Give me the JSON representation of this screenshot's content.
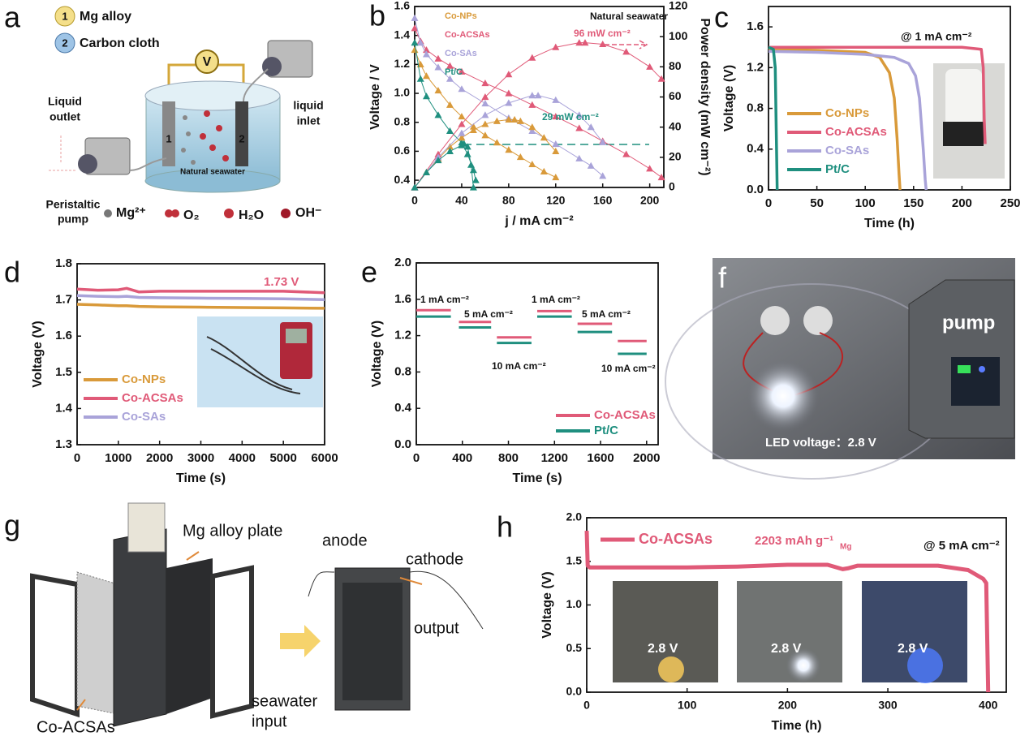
{
  "chart_data": [
    {
      "type": "line",
      "panel": "b",
      "xlabel": "j / mA cm⁻²",
      "ylabel": "Voltage / V",
      "y2label": "Power density (mW cm⁻²)",
      "xlim": [
        0,
        212
      ],
      "xticks": [
        0,
        40,
        80,
        120,
        160,
        200
      ],
      "ylim": [
        0.35,
        1.6
      ],
      "yticks": [
        0.4,
        0.6,
        0.8,
        {
          "value": 1.0,
          "label": "1.0"
        },
        1.2,
        1.4,
        1.6
      ],
      "y2lim": [
        0,
        120
      ],
      "y2ticks": [
        0,
        20,
        40,
        60,
        80,
        100,
        120
      ],
      "markers": true,
      "legend": "upper left",
      "annotations": [
        "Natural seawater",
        "96 mW cm⁻²",
        "29 mW cm⁻²"
      ],
      "series": [
        {
          "name": "Co-NPs",
          "color": "#d99a3a",
          "x": [
            0,
            5,
            10,
            20,
            30,
            40,
            50,
            60,
            70,
            80,
            90,
            100,
            110,
            120
          ],
          "values": [
            1.3,
            1.2,
            1.12,
            1.02,
            0.92,
            0.84,
            0.77,
            0.71,
            0.66,
            0.61,
            0.56,
            0.51,
            0.46,
            0.42
          ]
        },
        {
          "name": "Co-ACSAs",
          "color": "#e05a78",
          "x": [
            0,
            5,
            10,
            20,
            30,
            40,
            60,
            80,
            100,
            120,
            140,
            160,
            180,
            200,
            210
          ],
          "values": [
            1.45,
            1.36,
            1.3,
            1.24,
            1.19,
            1.15,
            1.07,
            1.0,
            0.92,
            0.84,
            0.76,
            0.67,
            0.58,
            0.48,
            0.42
          ]
        },
        {
          "name": "Co-SAs",
          "color": "#a9a3d9",
          "x": [
            0,
            5,
            10,
            20,
            30,
            40,
            60,
            80,
            100,
            120,
            140,
            150,
            160
          ],
          "values": [
            1.52,
            1.35,
            1.27,
            1.18,
            1.1,
            1.03,
            0.93,
            0.83,
            0.74,
            0.65,
            0.55,
            0.5,
            0.43
          ]
        },
        {
          "name": "Pt/C",
          "color": "#1f8f7f",
          "x": [
            0,
            5,
            10,
            20,
            30,
            40,
            45,
            50,
            52
          ],
          "values": [
            1.35,
            1.1,
            0.98,
            0.85,
            0.74,
            0.66,
            0.58,
            0.47,
            0.4
          ]
        },
        {
          "color": "#d99a3a",
          "axis": "y2",
          "x": [
            0,
            10,
            20,
            30,
            40,
            50,
            60,
            70,
            80,
            85,
            90,
            100,
            110,
            120
          ],
          "values": [
            0,
            10,
            19,
            27,
            33,
            38,
            42,
            44,
            45,
            45,
            44,
            40,
            33,
            24
          ]
        },
        {
          "color": "#e05a78",
          "axis": "y2",
          "x": [
            0,
            20,
            40,
            60,
            80,
            100,
            120,
            140,
            145,
            160,
            180,
            200,
            210
          ],
          "values": [
            0,
            22,
            42,
            60,
            75,
            86,
            93,
            96,
            96,
            95,
            90,
            80,
            72
          ]
        },
        {
          "color": "#a9a3d9",
          "axis": "y2",
          "x": [
            0,
            20,
            40,
            60,
            80,
            100,
            105,
            120,
            140,
            150,
            160
          ],
          "values": [
            0,
            20,
            36,
            48,
            56,
            61,
            61,
            58,
            48,
            40,
            30
          ]
        },
        {
          "color": "#1f8f7f",
          "axis": "y2",
          "x": [
            0,
            10,
            20,
            30,
            40,
            42,
            45,
            48,
            50
          ],
          "values": [
            0,
            10,
            18,
            24,
            28,
            29,
            27,
            15,
            0
          ]
        }
      ]
    },
    {
      "type": "line",
      "panel": "c",
      "xlabel": "Time (h)",
      "ylabel": "Voltage (V)",
      "xlim": [
        0,
        250
      ],
      "xticks": [
        0,
        50,
        100,
        150,
        200,
        250
      ],
      "ylim": [
        0,
        1.8
      ],
      "yticks": [
        {
          "value": 0,
          "label": "0.0"
        },
        0.4,
        0.8,
        1.2,
        1.6
      ],
      "legend": "lower left",
      "annotations": [
        "@ 1 mA cm⁻²"
      ],
      "series": [
        {
          "name": "Co-NPs",
          "color": "#d99a3a",
          "x": [
            0,
            50,
            100,
            115,
            125,
            130,
            133,
            135,
            136
          ],
          "values": [
            1.38,
            1.37,
            1.35,
            1.3,
            1.15,
            0.9,
            0.5,
            0.15,
            0
          ]
        },
        {
          "name": "Co-ACSAs",
          "color": "#e05a78",
          "x": [
            0,
            50,
            100,
            150,
            200,
            220,
            222,
            223,
            224
          ],
          "values": [
            1.4,
            1.4,
            1.4,
            1.4,
            1.4,
            1.38,
            1.2,
            0.7,
            0.45
          ]
        },
        {
          "name": "Co-SAs",
          "color": "#a9a3d9",
          "x": [
            0,
            50,
            100,
            130,
            145,
            152,
            156,
            160,
            162,
            163
          ],
          "values": [
            1.36,
            1.35,
            1.33,
            1.3,
            1.24,
            1.12,
            0.9,
            0.4,
            0.1,
            0
          ]
        },
        {
          "name": "Pt/C",
          "color": "#1f8f7f",
          "x": [
            0,
            5,
            7,
            8,
            9
          ],
          "values": [
            1.4,
            1.38,
            1.2,
            0.6,
            0
          ]
        }
      ]
    },
    {
      "type": "line",
      "panel": "d",
      "xlabel": "Time (s)",
      "ylabel": "Voltage (V)",
      "xlim": [
        0,
        6000
      ],
      "xticks": [
        0,
        1000,
        2000,
        3000,
        4000,
        5000,
        6000
      ],
      "ylim": [
        1.3,
        1.8
      ],
      "yticks": [
        1.3,
        1.4,
        1.5,
        1.6,
        1.7,
        1.8
      ],
      "legend": "lower left",
      "annotations": [
        "1.73 V"
      ],
      "x": [
        0,
        500,
        1000,
        1200,
        1500,
        2000,
        3000,
        4000,
        5000,
        6000
      ],
      "series": [
        {
          "name": "Co-NPs",
          "color": "#d99a3a",
          "values": [
            1.688,
            1.686,
            1.684,
            1.684,
            1.682,
            1.681,
            1.68,
            1.679,
            1.678,
            1.677
          ]
        },
        {
          "name": "Co-ACSAs",
          "color": "#e05a78",
          "values": [
            1.73,
            1.727,
            1.728,
            1.732,
            1.722,
            1.724,
            1.724,
            1.724,
            1.724,
            1.72
          ]
        },
        {
          "name": "Co-SAs",
          "color": "#a9a3d9",
          "values": [
            1.712,
            1.71,
            1.709,
            1.71,
            1.707,
            1.706,
            1.705,
            1.704,
            1.703,
            1.701
          ]
        }
      ]
    },
    {
      "type": "line",
      "panel": "e",
      "xlabel": "Time (s)",
      "ylabel": "Voltage (V)",
      "xlim": [
        0,
        2100
      ],
      "xticks": [
        0,
        400,
        800,
        1200,
        1600,
        2000
      ],
      "ylim": [
        0,
        2.0
      ],
      "yticks": [
        {
          "value": 0,
          "label": "0.0"
        },
        0.4,
        0.8,
        1.2,
        1.6,
        {
          "value": 2.0,
          "label": "2.0"
        }
      ],
      "legend": "lower right",
      "annotations": [
        "1 mA cm⁻²",
        "5 mA cm⁻²",
        "10 mA cm⁻²",
        "1 mA cm⁻²",
        "5 mA cm⁻²",
        "10 mA cm⁻²"
      ],
      "x": [
        0,
        300,
        330,
        370,
        650,
        680,
        700,
        1000,
        1030,
        1050,
        1350,
        1380,
        1400,
        1700,
        1730,
        1750,
        2000
      ],
      "series": [
        {
          "name": "Co-ACSAs",
          "color": "#e05a78",
          "values": [
            1.48,
            1.48,
            null,
            1.35,
            1.35,
            null,
            1.18,
            1.18,
            null,
            1.47,
            1.47,
            null,
            1.33,
            1.33,
            null,
            1.14,
            1.14
          ]
        },
        {
          "name": "Pt/C",
          "color": "#1f8f7f",
          "values": [
            1.41,
            1.41,
            null,
            1.29,
            1.29,
            null,
            1.12,
            1.12,
            null,
            1.41,
            1.41,
            null,
            1.24,
            1.24,
            null,
            1.0,
            1.0
          ]
        }
      ]
    },
    {
      "type": "line",
      "panel": "h",
      "xlabel": "Time (h)",
      "ylabel": "Voltage (V)",
      "xlim": [
        0,
        418
      ],
      "xticks": [
        0,
        100,
        200,
        300,
        400
      ],
      "ylim": [
        0,
        2.0
      ],
      "yticks": [
        {
          "value": 0,
          "label": "0.0"
        },
        0.5,
        {
          "value": 1.0,
          "label": "1.0"
        },
        1.5,
        {
          "value": 2.0,
          "label": "2.0"
        }
      ],
      "legend": "upper left",
      "annotations": [
        "2203 mAh g⁻¹",
        "Mg",
        "@ 5 mA cm⁻²",
        "2.8 V",
        "2.8 V",
        "2.8 V"
      ],
      "series": [
        {
          "name": "Co-ACSAs",
          "color": "#e05a78",
          "x": [
            0,
            1,
            3,
            50,
            100,
            150,
            200,
            240,
            255,
            260,
            270,
            300,
            350,
            380,
            395,
            398,
            400
          ],
          "values": [
            1.85,
            1.45,
            1.43,
            1.43,
            1.43,
            1.44,
            1.46,
            1.46,
            1.41,
            1.42,
            1.45,
            1.45,
            1.45,
            1.4,
            1.3,
            1.25,
            0
          ]
        }
      ]
    }
  ],
  "schematic_a": {
    "panel": "a",
    "legend": [
      {
        "number": "1",
        "label": "Mg alloy"
      },
      {
        "number": "2",
        "label": "Carbon cloth"
      }
    ],
    "meter": "V",
    "electrodes": [
      "1",
      "2"
    ],
    "outlet": [
      "Liquid",
      "outlet"
    ],
    "inlet": [
      "liquid",
      "inlet"
    ],
    "medium": "Natural seawater",
    "pump": [
      "Peristaltic",
      "pump"
    ],
    "species": [
      "Mg²⁺",
      "O₂",
      "H₂O",
      "OH⁻"
    ]
  },
  "photo_f": {
    "panel": "f",
    "device": "pump",
    "caption": "LED voltage：2.8 V"
  },
  "schematic_g": {
    "panel": "g",
    "plate": "Mg alloy plate",
    "anode": "anode",
    "cathode": "cathode",
    "output": "output",
    "input": [
      "seawater",
      "input"
    ],
    "catalyst": "Co-ACSAs"
  }
}
